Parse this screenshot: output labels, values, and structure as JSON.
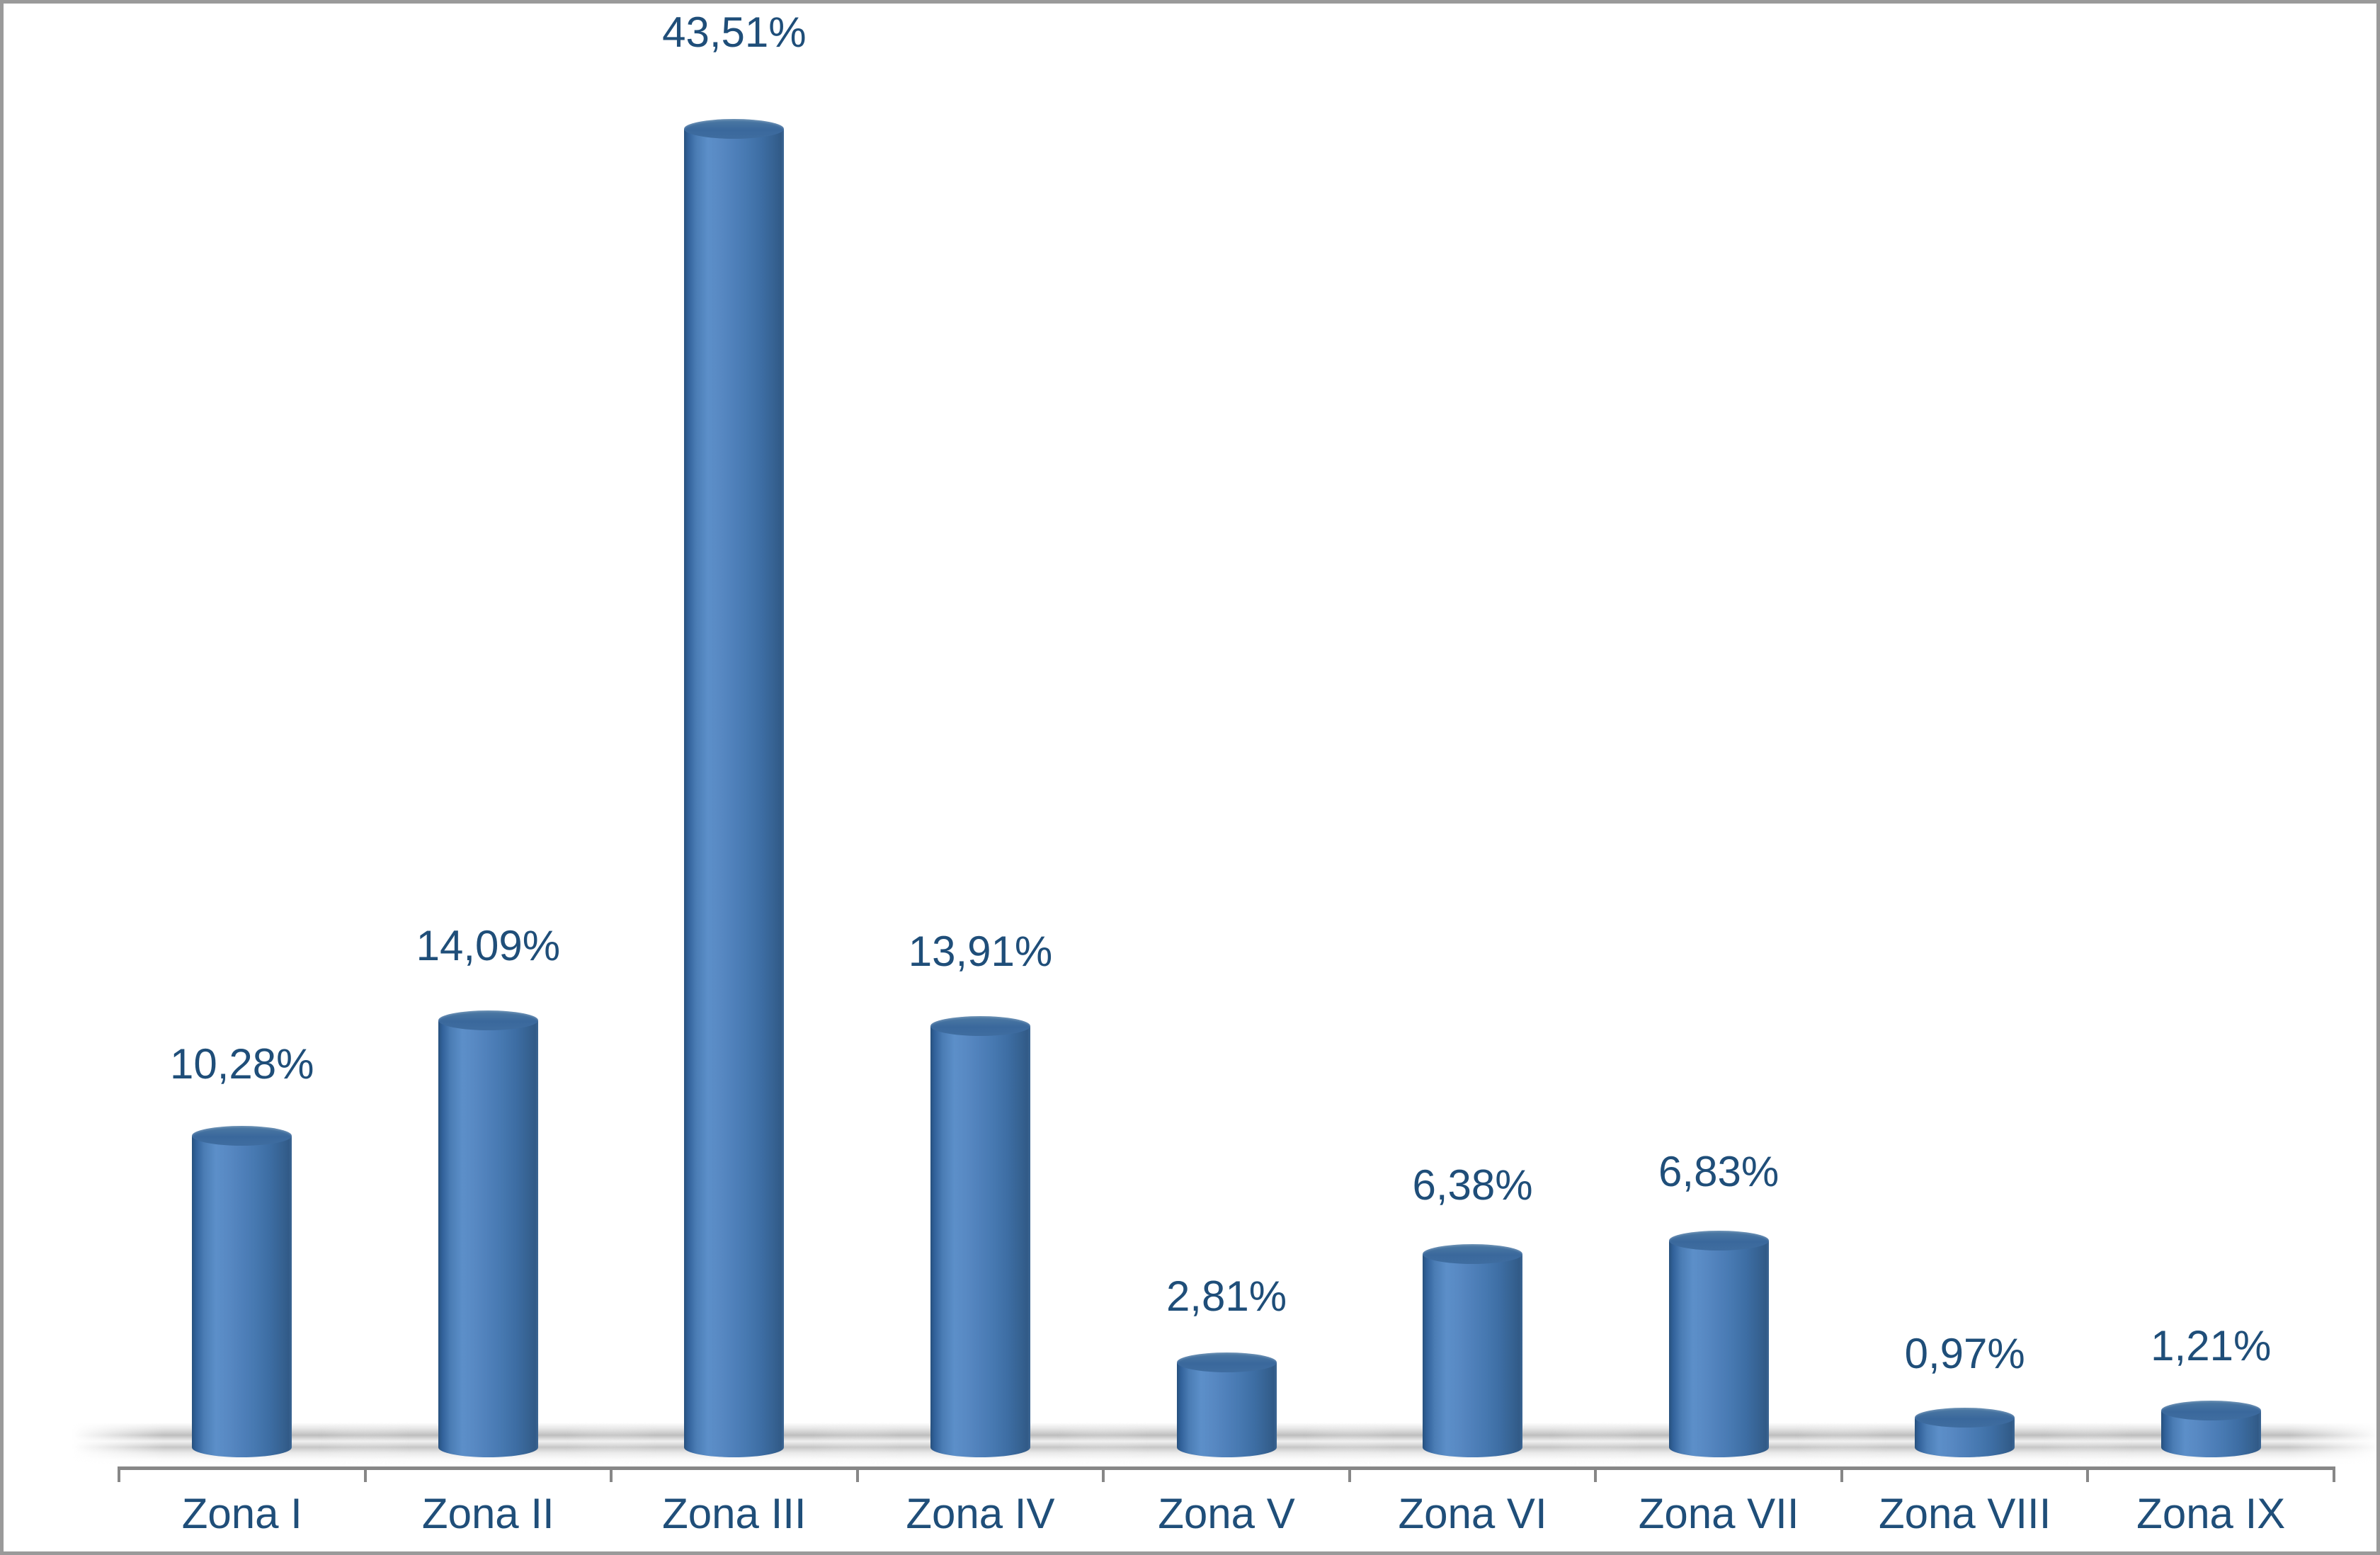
{
  "chart_data": {
    "type": "bar",
    "subtype": "3d-cylinder",
    "title": "",
    "xlabel": "",
    "ylabel": "",
    "categories": [
      "Zona I",
      "Zona II",
      "Zona III",
      "Zona IV",
      "Zona V",
      "Zona VI",
      "Zona VII",
      "Zona VIII",
      "Zona IX"
    ],
    "values": [
      10.28,
      14.09,
      43.51,
      13.91,
      2.81,
      6.38,
      6.83,
      0.97,
      1.21
    ],
    "labels": [
      "10,28%",
      "14,09%",
      "43,51%",
      "13,91%",
      "2,81%",
      "6,38%",
      "6,83%",
      "0,97%",
      "1,21%"
    ],
    "unit": "%",
    "ylim": [
      0,
      45
    ],
    "grid": false,
    "legend_position": "none",
    "bar_color": "#4A7FBA",
    "bar_top_color": "#3A689C",
    "label_color": "#1F4E79",
    "axis_color": "#878787",
    "frame_border_color": "#9A9A9A",
    "background_color": "#FFFFFF"
  }
}
